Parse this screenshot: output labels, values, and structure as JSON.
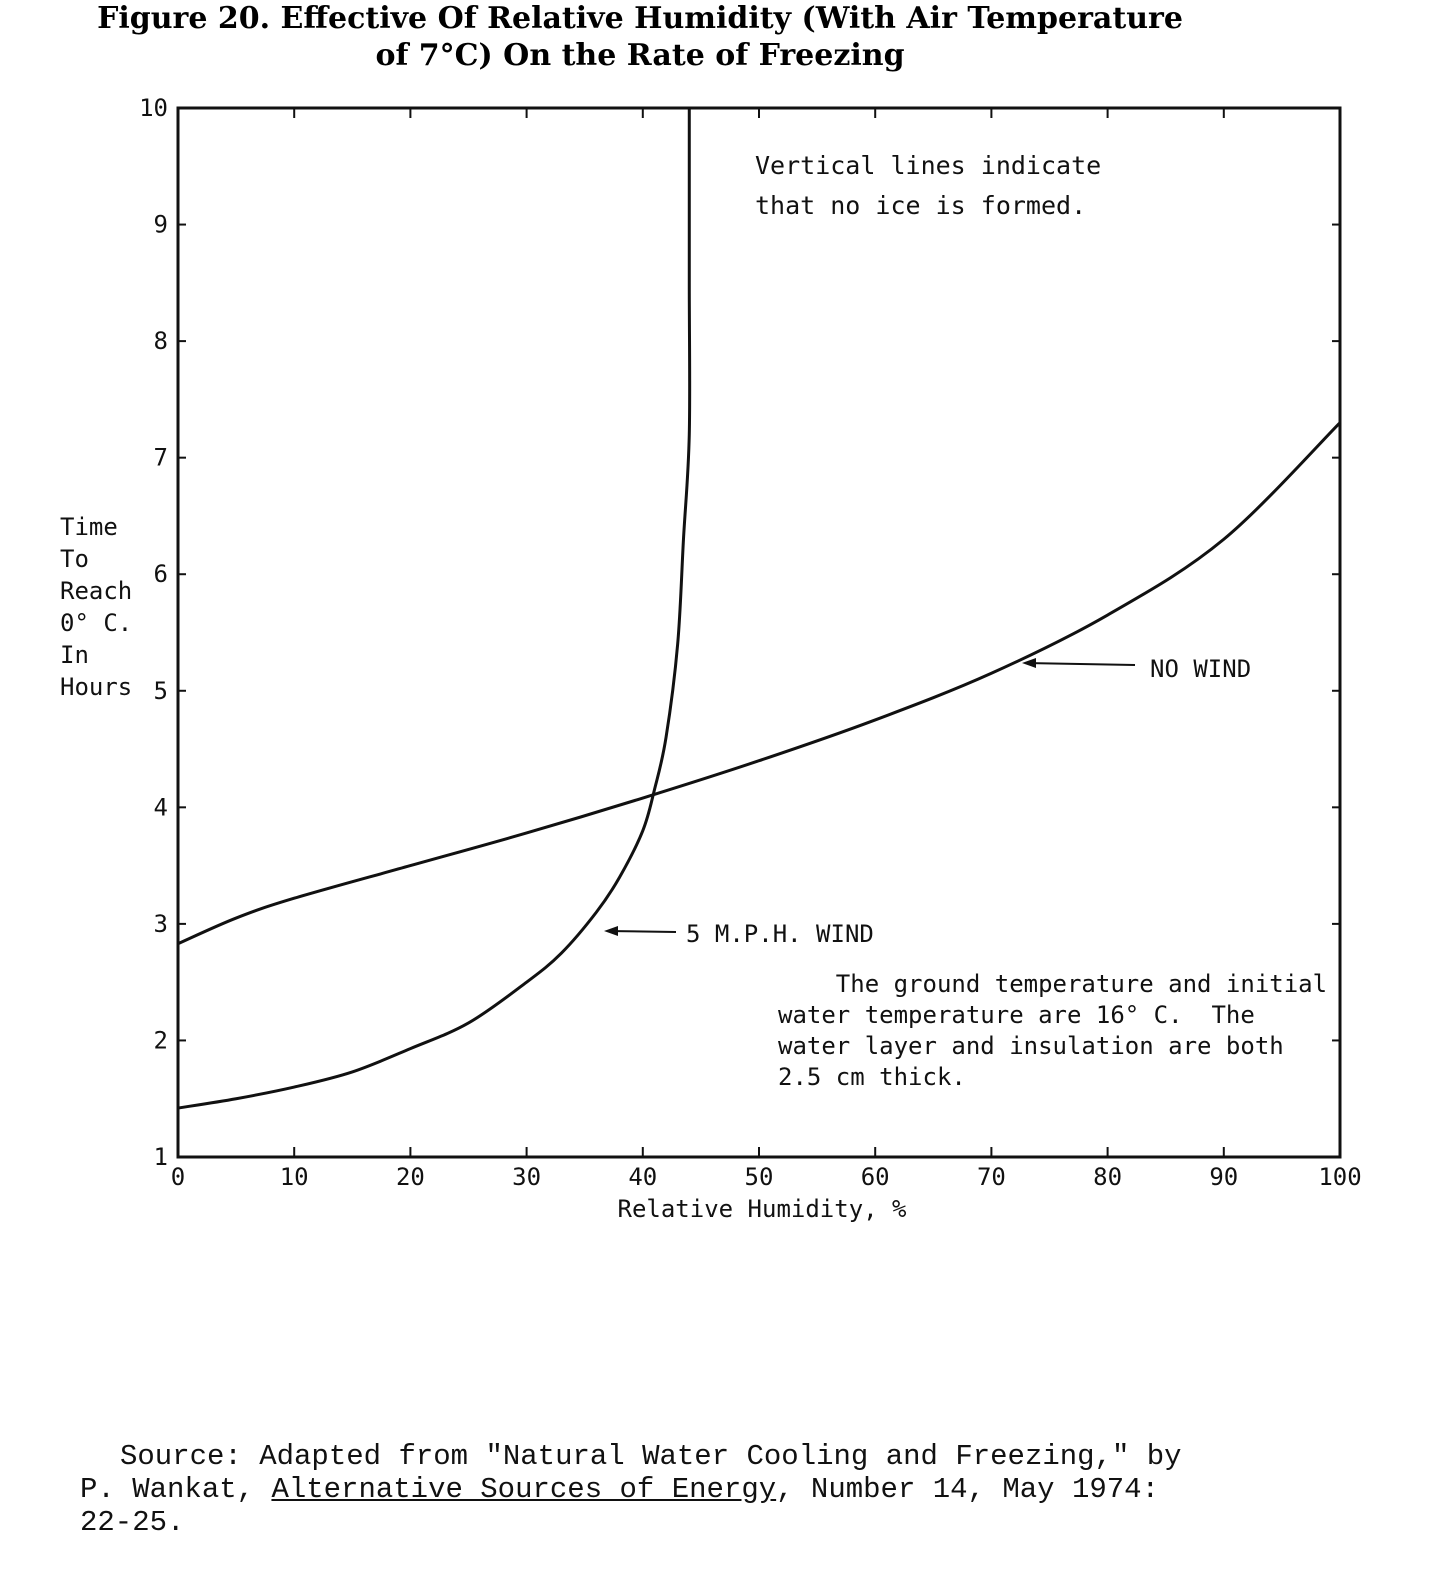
{
  "chart_data": {
    "type": "line",
    "xlabel": "Relative Humidity, %",
    "ylabel": [
      "Time",
      "To",
      "Reach",
      "0° C.",
      "In",
      "Hours"
    ],
    "xlim": [
      0,
      100
    ],
    "ylim": [
      1,
      10
    ],
    "xticks": [
      "0",
      "10",
      "20",
      "30",
      "40",
      "50",
      "60",
      "70",
      "80",
      "90",
      "100"
    ],
    "yticks": [
      "1",
      "2",
      "3",
      "4",
      "5",
      "6",
      "7",
      "8",
      "9",
      "10"
    ],
    "grid": false,
    "series": [
      {
        "name": "NO WIND",
        "x": [
          0,
          5,
          10,
          20,
          30,
          40,
          50,
          60,
          70,
          80,
          90,
          100
        ],
        "y": [
          2.83,
          3.05,
          3.22,
          3.5,
          3.78,
          4.08,
          4.4,
          4.75,
          5.15,
          5.65,
          6.3,
          7.3
        ]
      },
      {
        "name": "5 M.P.H. WIND",
        "x": [
          0,
          5,
          10,
          15,
          20,
          25,
          30,
          33,
          36,
          38,
          40,
          41,
          42,
          43,
          43.5,
          44,
          44,
          44
        ],
        "y": [
          1.42,
          1.5,
          1.6,
          1.73,
          1.93,
          2.15,
          2.5,
          2.75,
          3.1,
          3.4,
          3.8,
          4.15,
          4.6,
          5.4,
          6.3,
          7.2,
          8.5,
          10
        ]
      }
    ],
    "annotations": {
      "vertical_note": [
        "Vertical lines indicate",
        "that no ice is formed."
      ],
      "conditions_note": [
        "    The ground temperature and initial",
        "water temperature are 16° C.  The",
        "water layer and insulation are both",
        "2.5 cm thick."
      ],
      "no_wind_label": "NO WIND",
      "wind_label": "5 M.P.H. WIND"
    }
  },
  "caption": {
    "title_line1": "Figure 20. Effective Of Relative Humidity (With Air Temperature",
    "title_line2": "of 7°C) On the Rate of Freezing",
    "source_pre": "Source: Adapted from \"Natural Water Cooling and Freezing,\" by",
    "source_author": "P. Wankat, ",
    "source_journal": "Alternative Sources of Energy",
    "source_post": ", Number 14, May 1974:",
    "source_pages": "22-25."
  }
}
